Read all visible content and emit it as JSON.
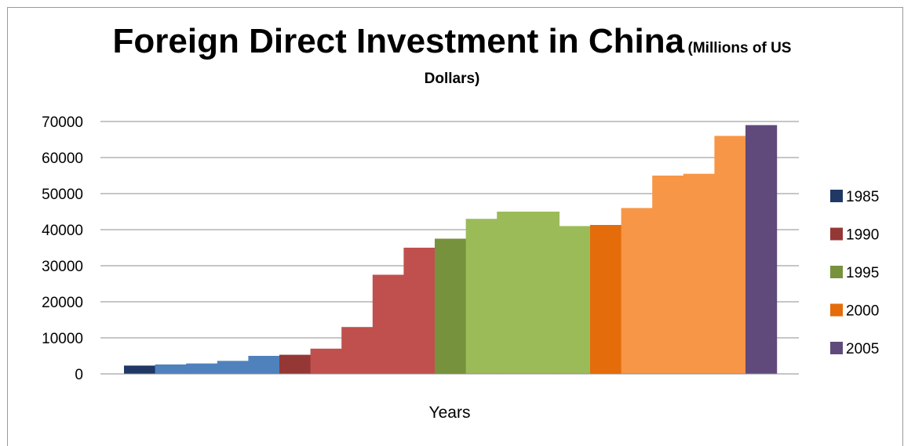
{
  "chart_data": {
    "type": "bar",
    "title": "Foreign Direct Investment in China",
    "subtitle": "(Millions of US Dollars)",
    "xlabel": "Years",
    "ylabel": "",
    "ylim": [
      0,
      70000
    ],
    "y_ticks": [
      "0",
      "10000",
      "20000",
      "30000",
      "40000",
      "50000",
      "60000",
      "70000"
    ],
    "grid": true,
    "legend_position": "right",
    "series": [
      {
        "name": "1985",
        "color": "#1f3864",
        "values": [
          2300
        ]
      },
      {
        "name": "",
        "color": "#4f81bd",
        "values": [
          2600,
          2900,
          3600,
          5000
        ]
      },
      {
        "name": "1990",
        "color": "#953735",
        "values": [
          5300
        ]
      },
      {
        "name": "",
        "color": "#c0504d",
        "values": [
          7000,
          13000,
          27500,
          35000
        ]
      },
      {
        "name": "1995",
        "color": "#76923c",
        "values": [
          37500
        ]
      },
      {
        "name": "",
        "color": "#9bbb59",
        "values": [
          43000,
          45000,
          45000,
          41000
        ]
      },
      {
        "name": "2000",
        "color": "#e46c0a",
        "values": [
          41300
        ]
      },
      {
        "name": "",
        "color": "#f79646",
        "values": [
          46000,
          55000,
          55500,
          66000
        ]
      },
      {
        "name": "2005",
        "color": "#604a7b",
        "values": [
          69000
        ]
      }
    ],
    "legend": [
      {
        "label": "1985",
        "color": "#1f3864"
      },
      {
        "label": "1990",
        "color": "#953735"
      },
      {
        "label": "1995",
        "color": "#76923c"
      },
      {
        "label": "2000",
        "color": "#e46c0a"
      },
      {
        "label": "2005",
        "color": "#604a7b"
      }
    ]
  }
}
